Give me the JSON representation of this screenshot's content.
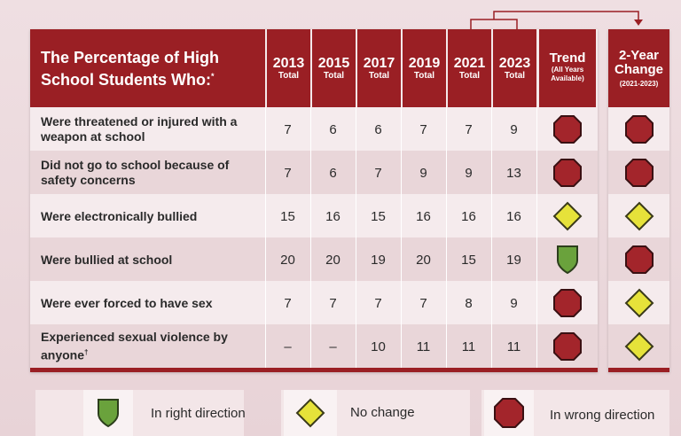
{
  "title": "The Percentage of High School Students Who:",
  "title_marker": "*",
  "columns": [
    {
      "year": "2013",
      "sub": "Total"
    },
    {
      "year": "2015",
      "sub": "Total"
    },
    {
      "year": "2017",
      "sub": "Total"
    },
    {
      "year": "2019",
      "sub": "Total"
    },
    {
      "year": "2021",
      "sub": "Total"
    },
    {
      "year": "2023",
      "sub": "Total"
    }
  ],
  "trend_header": {
    "title": "Trend",
    "sub1": "(All Years",
    "sub2": "Available)"
  },
  "change_header": {
    "title1": "2-Year",
    "title2": "Change",
    "sub": "(2021-2023)"
  },
  "rows": [
    {
      "label": "Were threatened or injured with a weapon at school",
      "values": [
        "7",
        "6",
        "6",
        "7",
        "7",
        "9"
      ],
      "trend": "wrong",
      "change": "wrong",
      "mark": ""
    },
    {
      "label": "Did not go to school because of safety concerns",
      "values": [
        "7",
        "6",
        "7",
        "9",
        "9",
        "13"
      ],
      "trend": "wrong",
      "change": "wrong",
      "mark": ""
    },
    {
      "label": "Were electronically bullied",
      "values": [
        "15",
        "16",
        "15",
        "16",
        "16",
        "16"
      ],
      "trend": "nochange",
      "change": "nochange",
      "mark": ""
    },
    {
      "label": "Were bullied at school",
      "values": [
        "20",
        "20",
        "19",
        "20",
        "15",
        "19"
      ],
      "trend": "right",
      "change": "wrong",
      "mark": ""
    },
    {
      "label": "Were ever forced to have sex",
      "values": [
        "7",
        "7",
        "7",
        "7",
        "8",
        "9"
      ],
      "trend": "wrong",
      "change": "nochange",
      "mark": ""
    },
    {
      "label": "Experienced sexual violence by anyone",
      "values": [
        "–",
        "–",
        "10",
        "11",
        "11",
        "11"
      ],
      "trend": "wrong",
      "change": "nochange",
      "mark": "†"
    }
  ],
  "legend": {
    "right": "In right direction",
    "nochange": "No change",
    "wrong": "In wrong direction"
  },
  "colors": {
    "header_red": "#9a1f24",
    "wrong_red": "#a3252b",
    "nochange_yellow": "#e6e23a",
    "right_green": "#6aa23c"
  }
}
